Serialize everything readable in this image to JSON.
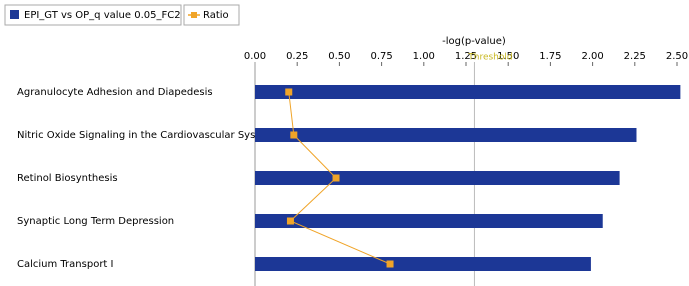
{
  "chart_data": {
    "type": "hbar",
    "x_label": "-log(p-value)",
    "categories": [
      "Agranulocyte Adhesion and Diapedesis",
      "Nitric Oxide Signaling in the Cardiovascular System",
      "Retinol Biosynthesis",
      "Synaptic Long Term Depression",
      "Calcium Transport I"
    ],
    "series": [
      {
        "name": "EPI_GT vs OP_q value 0.05_FC2",
        "color": "#1c3796",
        "values": [
          2.52,
          2.26,
          2.16,
          2.06,
          1.99
        ]
      },
      {
        "name": "Ratio",
        "color": "#f0a428",
        "values": [
          0.2,
          0.23,
          0.48,
          0.21,
          0.8
        ]
      }
    ],
    "xlim": [
      0,
      2.5
    ],
    "xticks": [
      {
        "value": 0,
        "label": "0.00"
      },
      {
        "value": 0.25,
        "label": "0.25"
      },
      {
        "value": 0.5,
        "label": "0.50"
      },
      {
        "value": 0.75,
        "label": "0.75"
      },
      {
        "value": 1,
        "label": "1.00"
      },
      {
        "value": 1.25,
        "label": "1.25"
      },
      {
        "value": 1.5,
        "label": "1.50"
      },
      {
        "value": 1.75,
        "label": "1.75"
      },
      {
        "value": 2,
        "label": "2.00"
      },
      {
        "value": 2.25,
        "label": "2.25"
      },
      {
        "value": 2.5,
        "label": "2.50"
      }
    ],
    "threshold": {
      "value": 1.3,
      "label": "Threshold",
      "color": "#c8b820"
    }
  }
}
